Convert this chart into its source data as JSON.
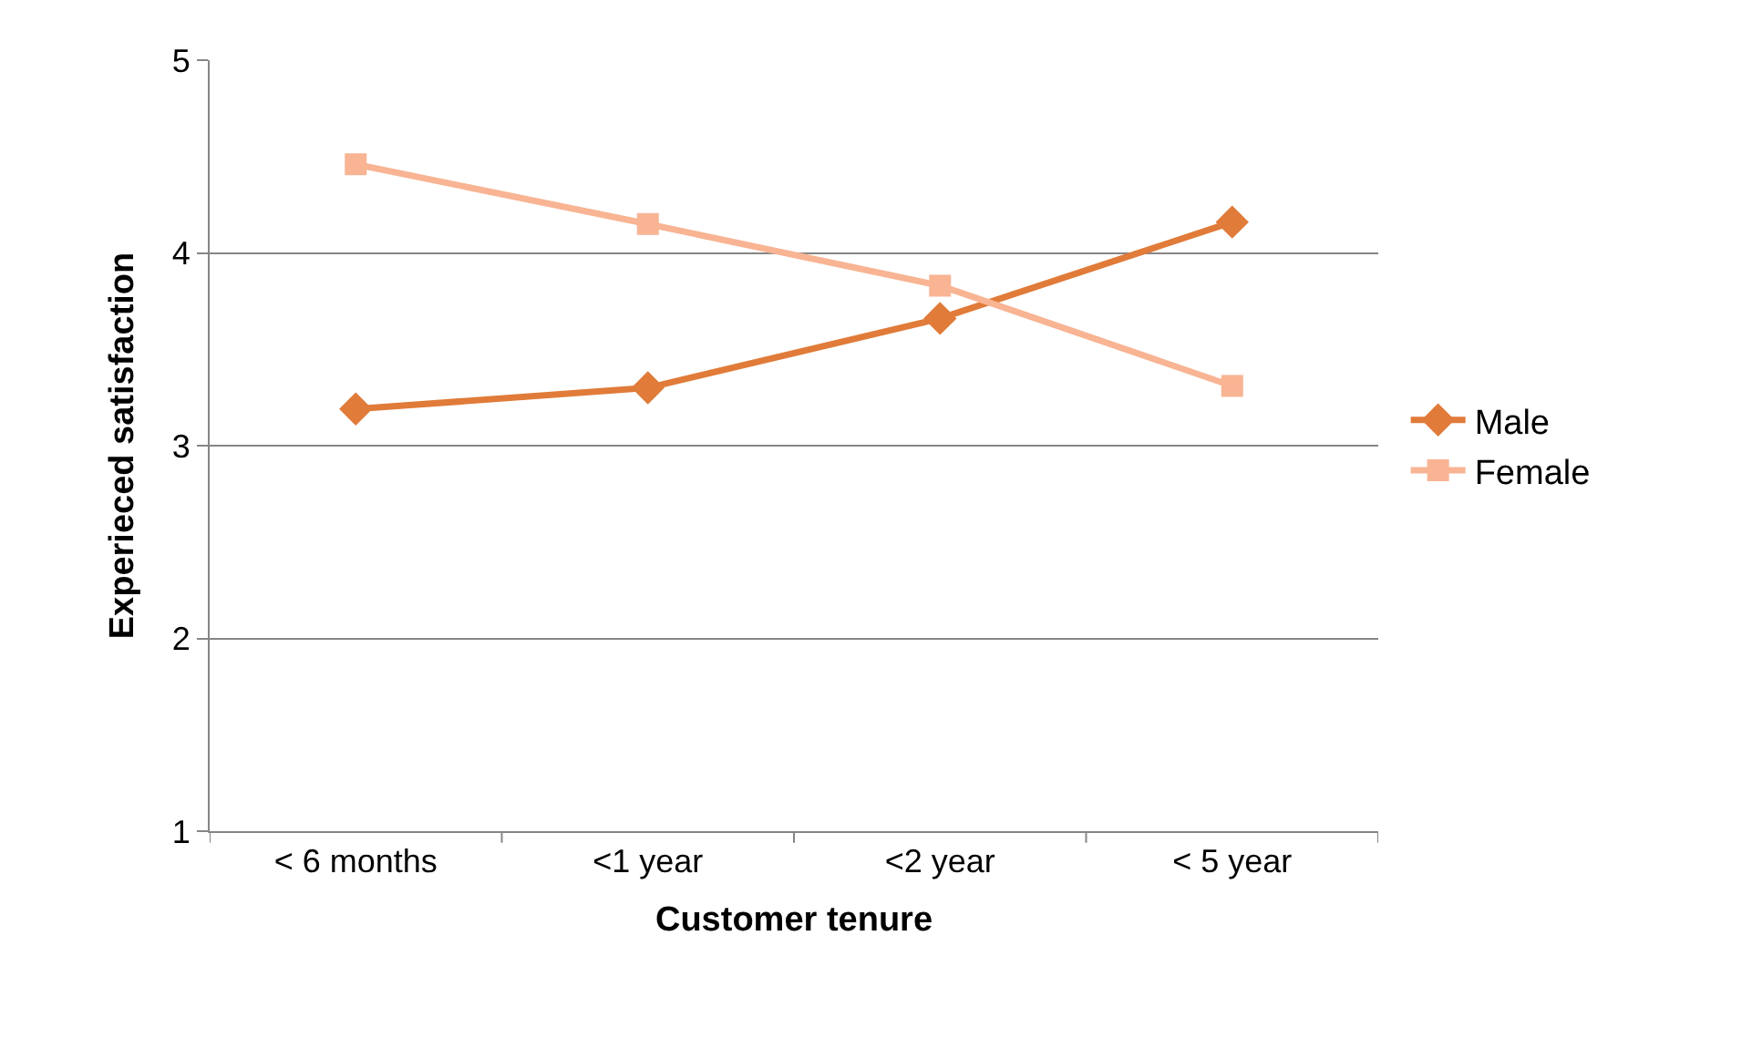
{
  "chart_data": {
    "type": "line",
    "xlabel": "Customer tenure",
    "ylabel": "Experieced satisfaction",
    "categories": [
      "< 6 months",
      "<1 year",
      "<2 year",
      "< 5 year"
    ],
    "series": [
      {
        "name": "Male",
        "color": "#e07b39",
        "marker": "diamond",
        "values": [
          3.19,
          3.3,
          3.66,
          4.16
        ]
      },
      {
        "name": "Female",
        "color": "#f8b493",
        "marker": "square",
        "values": [
          4.46,
          4.15,
          3.83,
          3.31
        ]
      }
    ],
    "ylim": [
      1,
      5
    ],
    "yticks": [
      1,
      2,
      3,
      4,
      5
    ],
    "grid": "y",
    "legend": "right"
  }
}
